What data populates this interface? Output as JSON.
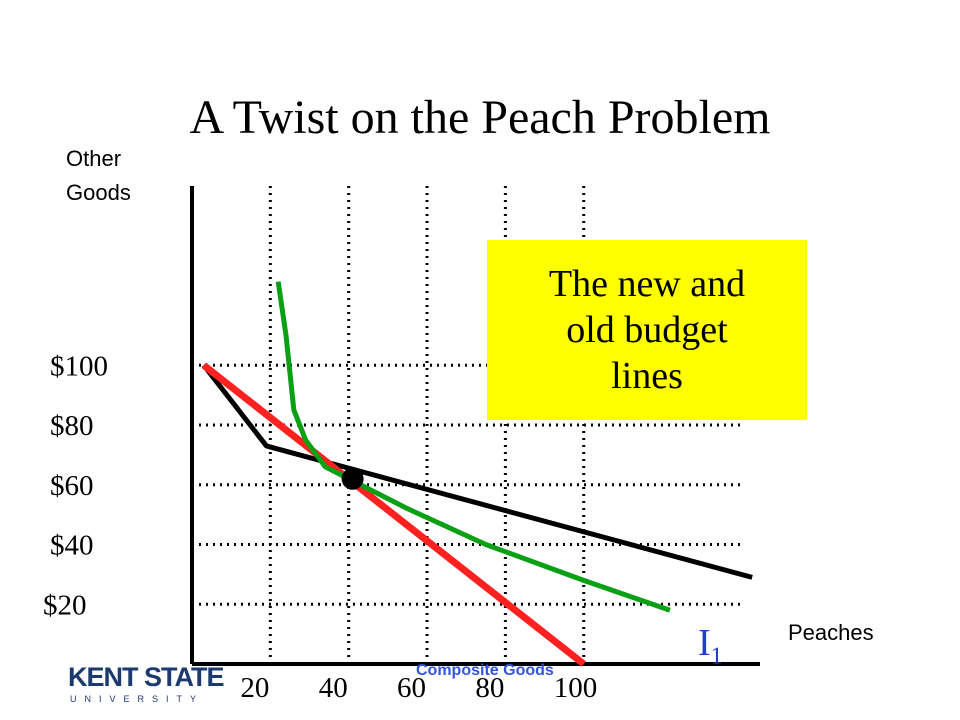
{
  "slide": {
    "title": "A Twist on the Peach Problem",
    "callout_lines": [
      "The new and",
      "old budget",
      "lines"
    ],
    "curve_label": "I",
    "curve_label_sub": "1",
    "footer_note": "Composite Goods",
    "logo": {
      "main": "KENT STATE",
      "sub": "UNIVERSITY"
    }
  },
  "chart_data": {
    "type": "line",
    "xlabel": "Peaches",
    "ylabel_lines": [
      "Other",
      "Goods"
    ],
    "x_ticks": [
      {
        "value": 20,
        "label": "20"
      },
      {
        "value": 40,
        "label": "40"
      },
      {
        "value": 60,
        "label": "60"
      },
      {
        "value": 80,
        "label": "80"
      },
      {
        "value": 100,
        "label": "100"
      }
    ],
    "y_ticks": [
      {
        "value": 100,
        "label": "$100"
      },
      {
        "value": 80,
        "label": "$80"
      },
      {
        "value": 60,
        "label": "$60"
      },
      {
        "value": 40,
        "label": "$40"
      },
      {
        "value": 20,
        "label": "$20"
      }
    ],
    "xlim": [
      0,
      145
    ],
    "ylim": [
      0,
      160
    ],
    "grid": "dotted",
    "series": [
      {
        "key": "new_budget",
        "color": "#000000",
        "points": [
          [
            3,
            100
          ],
          [
            19,
            73
          ],
          [
            143,
            29
          ]
        ]
      },
      {
        "key": "old_budget",
        "color": "#ff2020",
        "points": [
          [
            3,
            100
          ],
          [
            100,
            0
          ]
        ]
      },
      {
        "key": "indifference_I1",
        "color": "#0aa014",
        "points": [
          [
            22,
            128
          ],
          [
            24,
            110
          ],
          [
            26,
            85
          ],
          [
            29,
            75
          ],
          [
            34,
            66
          ],
          [
            40,
            62
          ],
          [
            55,
            52
          ],
          [
            75,
            40
          ],
          [
            100,
            28
          ],
          [
            122,
            18
          ]
        ]
      }
    ],
    "tangency_point": [
      41,
      62
    ]
  },
  "colors": {
    "title": "#000000",
    "callout_bg": "#ffff00",
    "curve_label": "#1f3fc8",
    "footer_note": "#3355dd",
    "logo": "#1c3a6e"
  }
}
